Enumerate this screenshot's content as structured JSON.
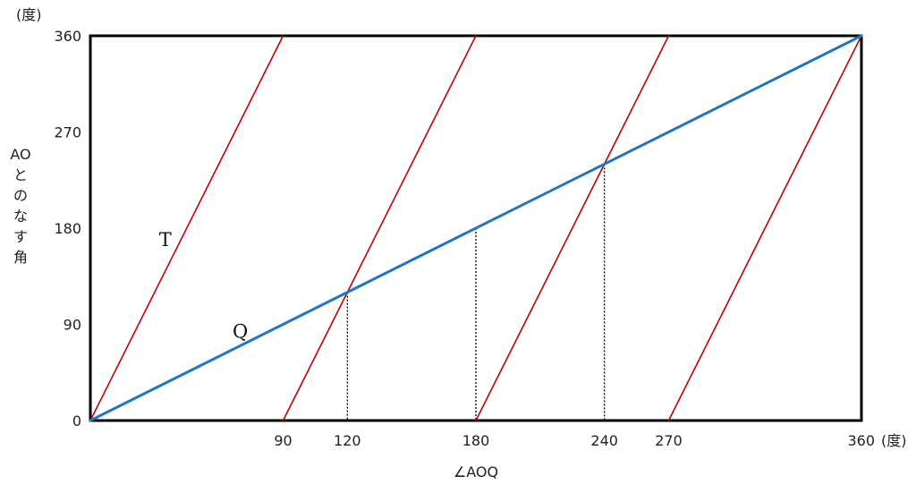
{
  "chart_data": {
    "type": "line",
    "xlabel": "∠AOQ",
    "x_unit": "(度)",
    "ylabel_chars": [
      "AO",
      "と",
      "の",
      "な",
      "す",
      "角"
    ],
    "y_unit": "(度)",
    "xlim": [
      0,
      360
    ],
    "ylim": [
      0,
      360
    ],
    "x_ticks": [
      90,
      120,
      180,
      240,
      270,
      360
    ],
    "y_ticks": [
      0,
      90,
      180,
      270,
      360
    ],
    "grid": false,
    "colors": {
      "T": "#c00000",
      "Q": "#1f77c4",
      "frame": "#000000",
      "guide": "#000000"
    },
    "series": [
      {
        "name": "T",
        "label": "T",
        "segments": [
          [
            [
              0,
              0
            ],
            [
              90,
              360
            ]
          ],
          [
            [
              90,
              0
            ],
            [
              180,
              360
            ]
          ],
          [
            [
              180,
              0
            ],
            [
              270,
              360
            ]
          ],
          [
            [
              270,
              0
            ],
            [
              360,
              360
            ]
          ]
        ]
      },
      {
        "name": "Q",
        "label": "Q",
        "segments": [
          [
            [
              0,
              0
            ],
            [
              360,
              360
            ]
          ]
        ]
      }
    ],
    "guide_lines": [
      {
        "x": 120,
        "y": 120
      },
      {
        "x": 180,
        "y": 180
      },
      {
        "x": 240,
        "y": 240
      }
    ],
    "label_positions": {
      "T": {
        "x": 35,
        "y": 170
      },
      "Q": {
        "x": 70,
        "y": 84
      }
    }
  }
}
